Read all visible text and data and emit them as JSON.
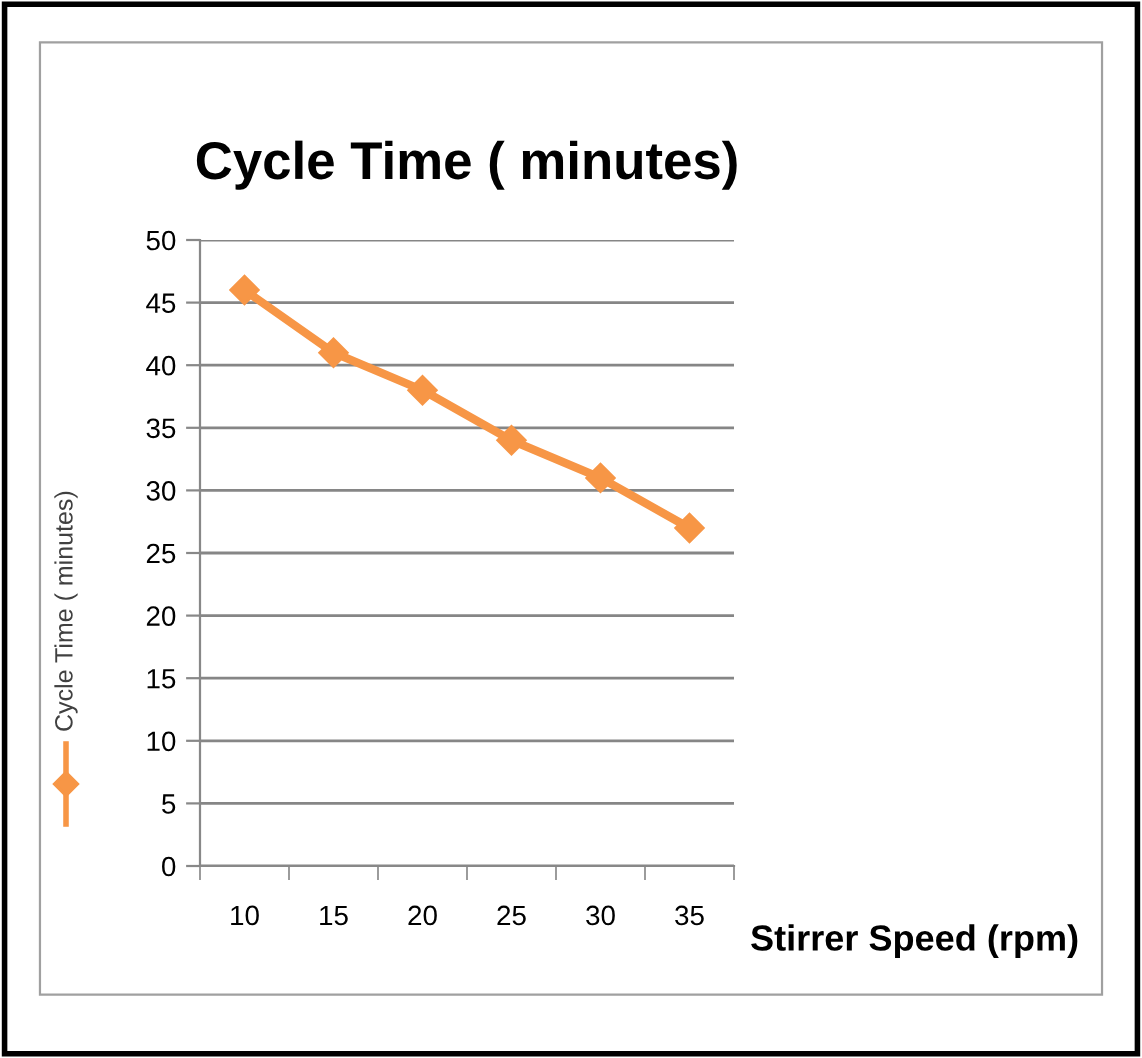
{
  "chart_data": {
    "type": "line",
    "title": "Cycle Time ( minutes)",
    "xlabel": "Stirrer Speed (rpm)",
    "categories": [
      "10",
      "15",
      "20",
      "25",
      "30",
      "35"
    ],
    "series": [
      {
        "name": "Cycle Time ( minutes)",
        "color": "#f79646",
        "values": [
          46,
          41,
          38,
          34,
          31,
          27
        ]
      }
    ],
    "ylim": [
      0,
      50
    ],
    "yticks": [
      0,
      5,
      10,
      15,
      20,
      25,
      30,
      35,
      40,
      45,
      50
    ],
    "grid": "y",
    "legend": "left",
    "marker": "diamond",
    "line_style": "solid"
  }
}
